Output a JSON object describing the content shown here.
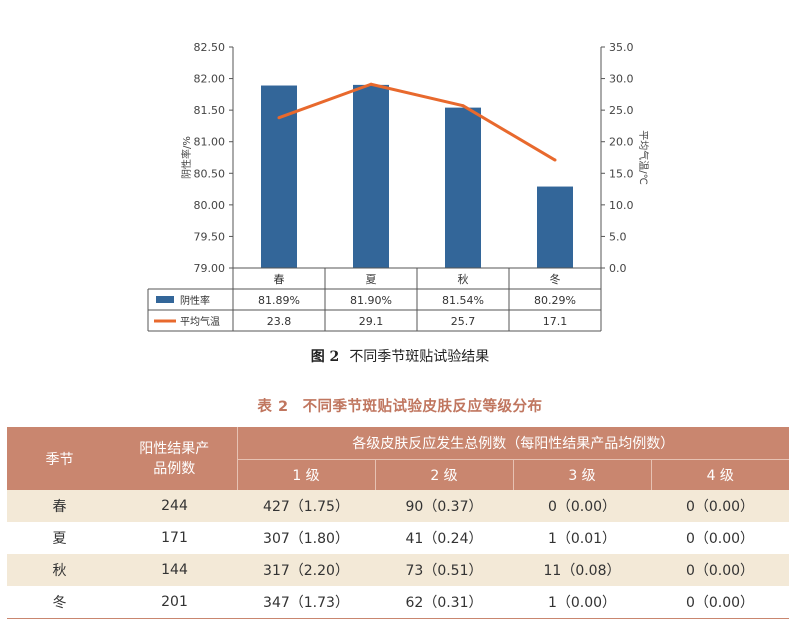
{
  "chart_data": {
    "type": "bar",
    "categories": [
      "春",
      "夏",
      "秋",
      "冬"
    ],
    "series": [
      {
        "name": "阴性率",
        "kind": "bar",
        "values": [
          81.89,
          81.9,
          81.54,
          80.29
        ],
        "labels": [
          "81.89%",
          "81.90%",
          "81.54%",
          "80.29%"
        ],
        "color": "#336699",
        "axis": "left"
      },
      {
        "name": "平均气温",
        "kind": "line",
        "values": [
          23.8,
          29.1,
          25.7,
          17.1
        ],
        "labels": [
          "23.8",
          "29.1",
          "25.7",
          "17.1"
        ],
        "color": "#e8692d",
        "axis": "right"
      }
    ],
    "ylabel": "阴性率/%",
    "y2label": "平均气温/℃",
    "ylim": [
      79.0,
      82.5
    ],
    "y2lim": [
      0,
      35
    ],
    "yticks": [
      "82.50",
      "82.00",
      "81.50",
      "81.00",
      "80.50",
      "80.00",
      "79.50",
      "79.00"
    ],
    "y2ticks": [
      "35.0",
      "30.0",
      "25.0",
      "20.0",
      "15.0",
      "10.0",
      "5.0",
      "0.0"
    ],
    "grid": false,
    "legend": "data-table-left"
  },
  "figure": {
    "number": "图 2",
    "caption": "不同季节斑贴试验结果"
  },
  "table": {
    "number": "表 2",
    "caption": "不同季节斑贴试验皮肤反应等级分布",
    "col_season": "季节",
    "col_positive": "阳性结果产品例数",
    "col_group": "各级皮肤反应发生总例数（每阳性结果产品均例数）",
    "grades": [
      "1 级",
      "2 级",
      "3 级",
      "4 级"
    ],
    "rows": [
      {
        "season": "春",
        "positive": "244",
        "g1": "427（1.75）",
        "g2": "90（0.37）",
        "g3": "0（0.00）",
        "g4": "0（0.00）"
      },
      {
        "season": "夏",
        "positive": "171",
        "g1": "307（1.80）",
        "g2": "41（0.24）",
        "g3": "1（0.01）",
        "g4": "0（0.00）"
      },
      {
        "season": "秋",
        "positive": "144",
        "g1": "317（2.20）",
        "g2": "73（0.51）",
        "g3": "11（0.08）",
        "g4": "0（0.00）"
      },
      {
        "season": "冬",
        "positive": "201",
        "g1": "347（1.73）",
        "g2": "62（0.31）",
        "g3": "1（0.00）",
        "g4": "0（0.00）"
      }
    ]
  }
}
